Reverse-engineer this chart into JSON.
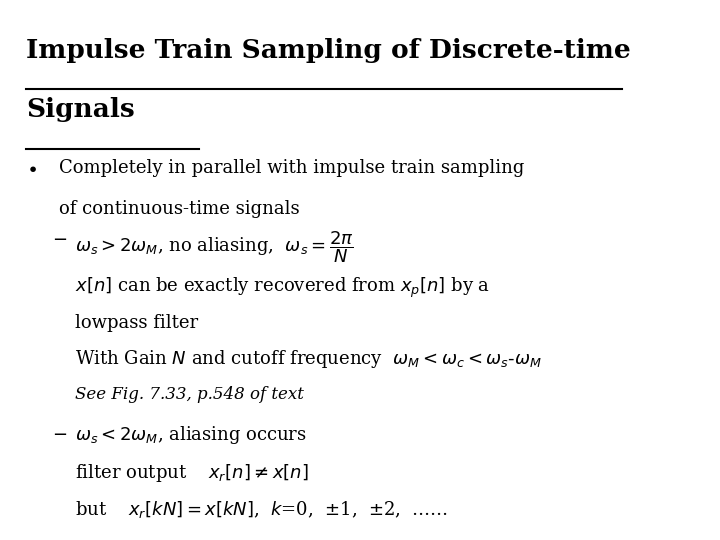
{
  "bg_color": "#ffffff",
  "title_line1": "Impulse Train Sampling of Discrete-time",
  "title_line2": "Signals",
  "bullet1_line1": "Completely in parallel with impulse train sampling",
  "bullet1_line2": "of continuous-time signals",
  "dash1_text": ", no aliasing,",
  "dash1_math_left": "$\\omega_s > 2\\omega_M$",
  "dash1_math_right": "$\\omega_s = \\dfrac{2\\pi}{N}$",
  "sub1_line1_pre": "$x[n]$ can be exactly recovered from $x_p[n]$ by a",
  "sub1_line2": "lowpass filter",
  "sub2_line1_pre": "With Gain ",
  "sub2_line1_math": "$N$",
  "sub2_line1_mid": " and cutoff frequency ",
  "sub2_line1_post": "$\\omega_M < \\omega_c < \\omega_s$- $\\omega_M$",
  "see_fig": "See Fig. 7.33, p.548 of text",
  "dash2_math": "$\\omega_s < 2\\omega_M$",
  "dash2_text": ", aliasing occurs",
  "filter_pre": "filter output    $x_r[n] \\neq x[n]$",
  "but_pre": "but    $x_r[kN] = x[kN]$,  $k$=0,",
  "but_post": " ±1,  ±2,  ……"
}
